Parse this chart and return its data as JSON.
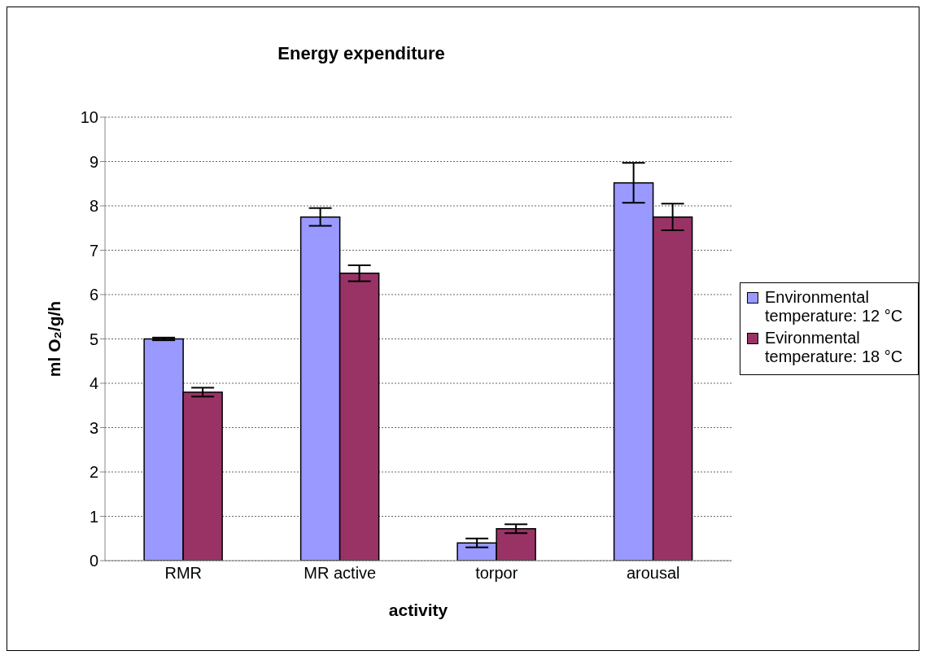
{
  "chart_data": {
    "type": "bar",
    "title": "Energy expenditure",
    "xlabel": "activity",
    "ylabel": "ml O₂/g/h",
    "categories": [
      "RMR",
      "MR active",
      "torpor",
      "arousal"
    ],
    "series": [
      {
        "name": "Environmental temperature: 12 °C",
        "color": "#9999ff",
        "values": [
          5.0,
          7.75,
          0.4,
          8.52
        ],
        "errors": [
          0.03,
          0.2,
          0.1,
          0.45
        ]
      },
      {
        "name": "Evironmental temperature: 18 °C",
        "color": "#993366",
        "values": [
          3.8,
          6.48,
          0.72,
          7.75
        ],
        "errors": [
          0.1,
          0.18,
          0.1,
          0.3
        ]
      }
    ],
    "ylim": [
      0,
      10
    ],
    "yticks": [
      0,
      1,
      2,
      3,
      4,
      5,
      6,
      7,
      8,
      9,
      10
    ],
    "grid": "y",
    "legend": "right"
  }
}
